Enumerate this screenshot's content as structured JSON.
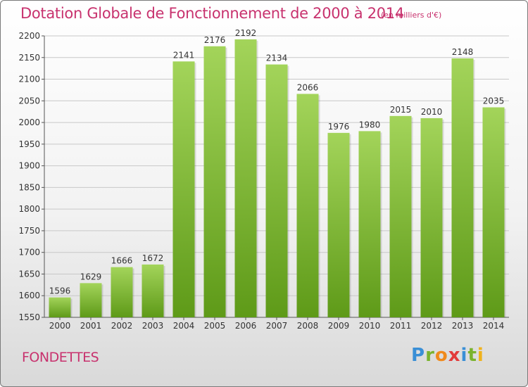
{
  "title": "Dotation Globale de Fonctionnement de 2000 à 2014",
  "subtitle": "(en milliers d'€)",
  "commune": "FONDETTES",
  "logo": {
    "letters": [
      "P",
      "r",
      "o",
      "x",
      "i",
      "t",
      "i"
    ],
    "colors": [
      "#3a8fd6",
      "#7ab32e",
      "#f08a1c",
      "#e23b3b",
      "#3a8fd6",
      "#7ab32e",
      "#f0b21c"
    ]
  },
  "colors": {
    "bar_top": "#a3d45a",
    "bar_bottom": "#5e9a18",
    "grid": "#c8c8c8",
    "accent": "#c8326e"
  },
  "chart_data": {
    "type": "bar",
    "categories": [
      "2000",
      "2001",
      "2002",
      "2003",
      "2004",
      "2005",
      "2006",
      "2007",
      "2008",
      "2009",
      "2010",
      "2011",
      "2012",
      "2013",
      "2014"
    ],
    "values": [
      1596,
      1629,
      1666,
      1672,
      2141,
      2176,
      2192,
      2134,
      2066,
      1976,
      1980,
      2015,
      2010,
      2148,
      2035
    ],
    "ylim": [
      1550,
      2200
    ],
    "yticks": [
      1550,
      1600,
      1650,
      1700,
      1750,
      1800,
      1850,
      1900,
      1950,
      2000,
      2050,
      2100,
      2150,
      2200
    ],
    "grid": true,
    "xlabel": "",
    "ylabel": ""
  }
}
